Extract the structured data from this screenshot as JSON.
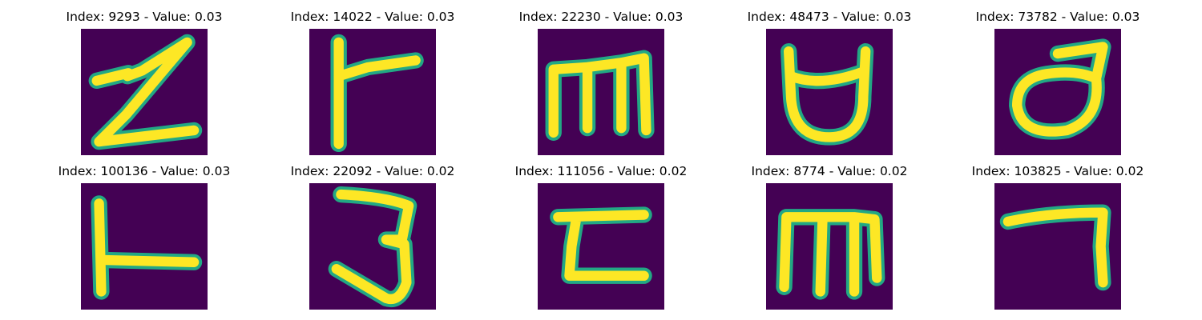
{
  "figure": {
    "panels": [
      {
        "title": "Index: 9293 - Value: 0.03",
        "index": 9293,
        "value": 0.03,
        "glyph": "zigzag-z"
      },
      {
        "title": "Index: 14022 - Value: 0.03",
        "index": 14022,
        "value": 0.03,
        "glyph": "vertical-with-right-arm"
      },
      {
        "title": "Index: 22230 - Value: 0.03",
        "index": 22230,
        "value": 0.03,
        "glyph": "m-shape"
      },
      {
        "title": "Index: 48473 - Value: 0.03",
        "index": 48473,
        "value": 0.03,
        "glyph": "cup-with-horns"
      },
      {
        "title": "Index: 73782 - Value: 0.03",
        "index": 73782,
        "value": 0.03,
        "glyph": "loop-with-tail"
      },
      {
        "title": "Index: 100136 - Value: 0.03",
        "index": 100136,
        "value": 0.03,
        "glyph": "vertical-with-low-arm"
      },
      {
        "title": "Index: 22092 - Value: 0.02",
        "index": 22092,
        "value": 0.02,
        "glyph": "three"
      },
      {
        "title": "Index: 111056 - Value: 0.02",
        "index": 111056,
        "value": 0.02,
        "glyph": "reverse-c"
      },
      {
        "title": "Index: 8774 - Value: 0.02",
        "index": 8774,
        "value": 0.02,
        "glyph": "m-shape-tall"
      },
      {
        "title": "Index: 103825 - Value: 0.02",
        "index": 103825,
        "value": 0.02,
        "glyph": "hook-seven"
      }
    ]
  },
  "colors": {
    "background": "#440154",
    "stroke_edge": "#22a884",
    "stroke_core": "#fde725",
    "title_text": "#000000"
  }
}
